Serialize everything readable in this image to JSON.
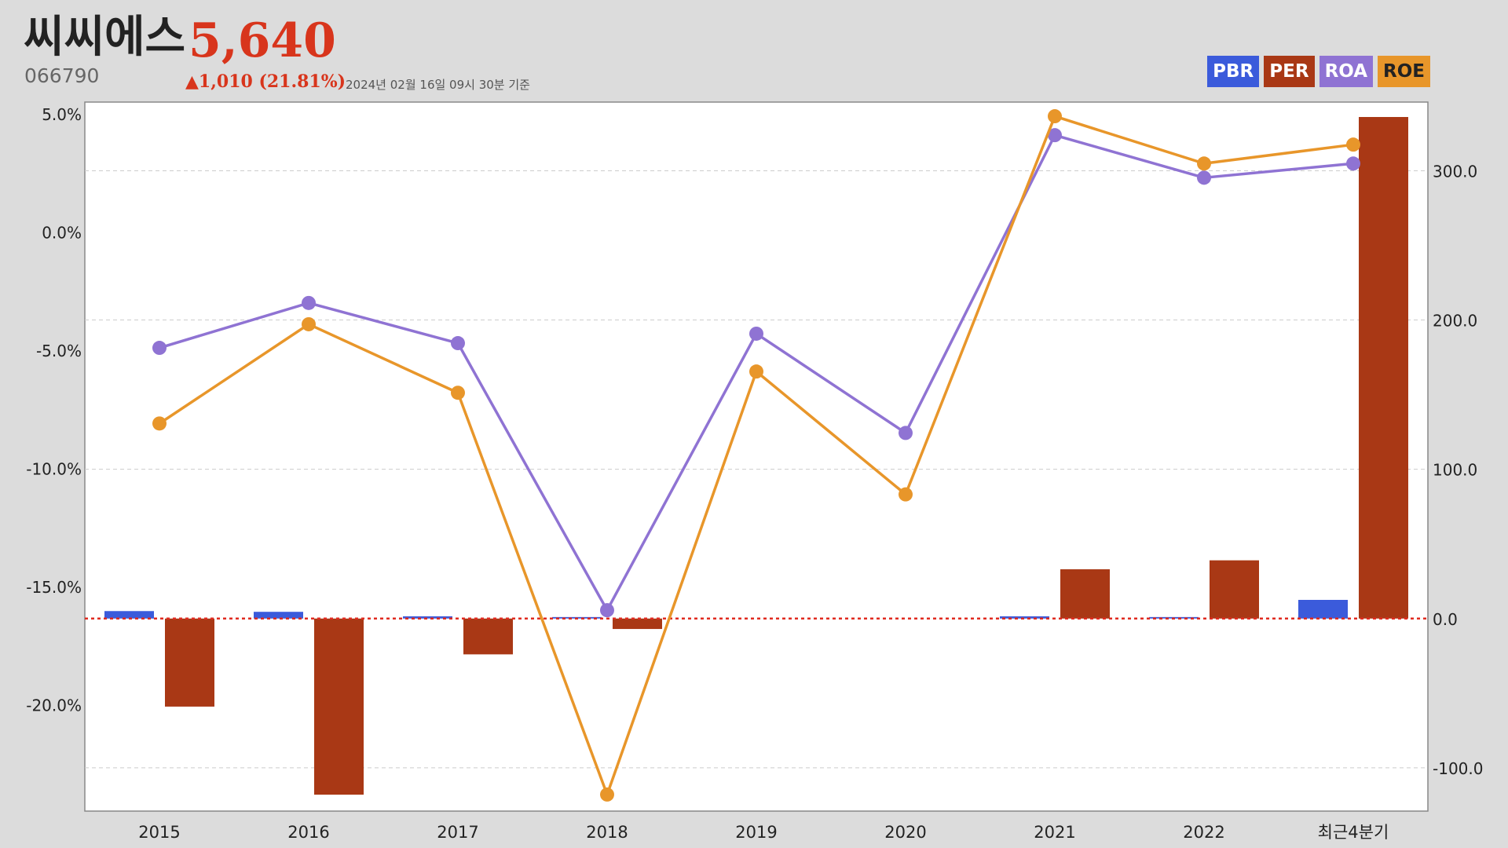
{
  "header": {
    "title": "씨씨에스",
    "price": "5,640",
    "code": "066790",
    "change": "▲1,010 (21.81%)",
    "as_of": "2024년 02월 16일 09시 30분 기준"
  },
  "legend": [
    {
      "label": "PBR",
      "color": "#3b5bdb"
    },
    {
      "label": "PER",
      "color": "#a93815"
    },
    {
      "label": "ROA",
      "color": "#8f73d3"
    },
    {
      "label": "ROE",
      "color": "#e8962a"
    }
  ],
  "chart_data": {
    "type": "bar",
    "categories": [
      "2015",
      "2016",
      "2017",
      "2018",
      "2019",
      "2020",
      "2021",
      "2022",
      "최근4분기"
    ],
    "left_axis": {
      "ticks": [
        "5.0%",
        "0.0%",
        "-5.0%",
        "-10.0%",
        "-15.0%",
        "-20.0%"
      ],
      "tick_values": [
        5,
        0,
        -5,
        -10,
        -15,
        -20
      ],
      "range": [
        -24.5,
        5.5
      ]
    },
    "right_axis": {
      "ticks": [
        "300.0",
        "200.0",
        "100.0",
        "0.0",
        "-100.0"
      ],
      "tick_values": [
        300,
        200,
        100,
        0,
        -100
      ],
      "range": [
        -129,
        346
      ]
    },
    "series": [
      {
        "name": "PBR",
        "type": "bar",
        "axis": "right",
        "color": "#3b5bdb",
        "values": [
          5.0,
          4.5,
          1.5,
          1.0,
          null,
          null,
          1.5,
          1.0,
          12.5
        ]
      },
      {
        "name": "PER",
        "type": "bar",
        "axis": "right",
        "color": "#a93815",
        "values": [
          -59,
          -118,
          -24,
          -7,
          null,
          null,
          33,
          39,
          336
        ]
      },
      {
        "name": "ROA",
        "type": "line",
        "axis": "left",
        "color": "#8f73d3",
        "values": [
          -4.9,
          -3.0,
          -4.7,
          -16.0,
          -4.3,
          -8.5,
          4.1,
          2.3,
          2.9
        ]
      },
      {
        "name": "ROE",
        "type": "line",
        "axis": "left",
        "color": "#e8962a",
        "values": [
          -8.1,
          -3.9,
          -6.8,
          -23.8,
          -5.9,
          -11.1,
          4.9,
          2.9,
          3.7
        ]
      }
    ]
  }
}
